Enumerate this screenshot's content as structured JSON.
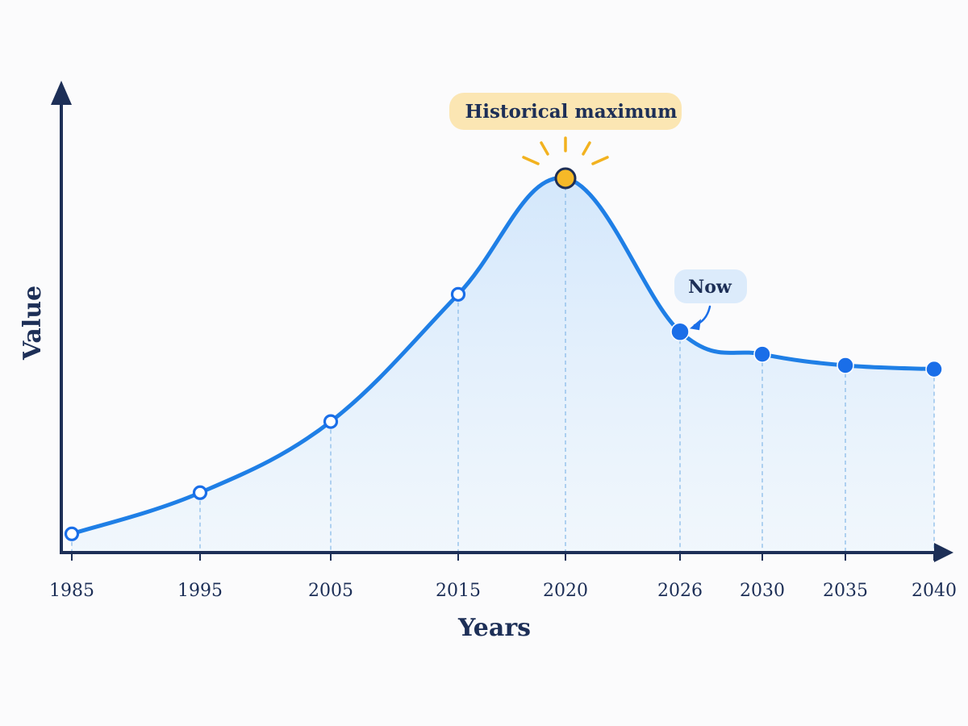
{
  "chart_data": {
    "type": "line",
    "title": "",
    "xlabel": "Years",
    "ylabel": "Value",
    "x": [
      "1985",
      "1995",
      "2005",
      "2015",
      "2020",
      "2026",
      "2030",
      "2035",
      "2040"
    ],
    "series": [
      {
        "values": [
          5,
          16,
          35,
          69,
          100,
          59,
          53,
          50,
          49
        ]
      }
    ],
    "ylim": [
      0,
      110
    ],
    "grid": false,
    "legend": "none",
    "y_ticks_shown": false,
    "area_fill": true,
    "guide_lines": "dashed vertical line from each point to x-axis",
    "marker_styles": {
      "past": "hollow circle",
      "maximum": "gold filled circle with rays",
      "now_and_future": "solid blue circle"
    },
    "annotations": [
      {
        "text": "Historical maximum",
        "x": "2020",
        "style": "gold pill above point"
      },
      {
        "text": "Now",
        "x": "2026",
        "style": "light blue pill with curved arrow"
      }
    ],
    "colors": {
      "line": "#1f7fe6",
      "axis": "#1d2f57",
      "fill": "#cfe5fb",
      "max_marker": "#f6b928",
      "max_rays": "#f2b21f",
      "max_pill": "#fbe6b3",
      "now_pill": "#dcebfb",
      "point": "#1a6ee8",
      "guide": "#8cbde9"
    }
  }
}
